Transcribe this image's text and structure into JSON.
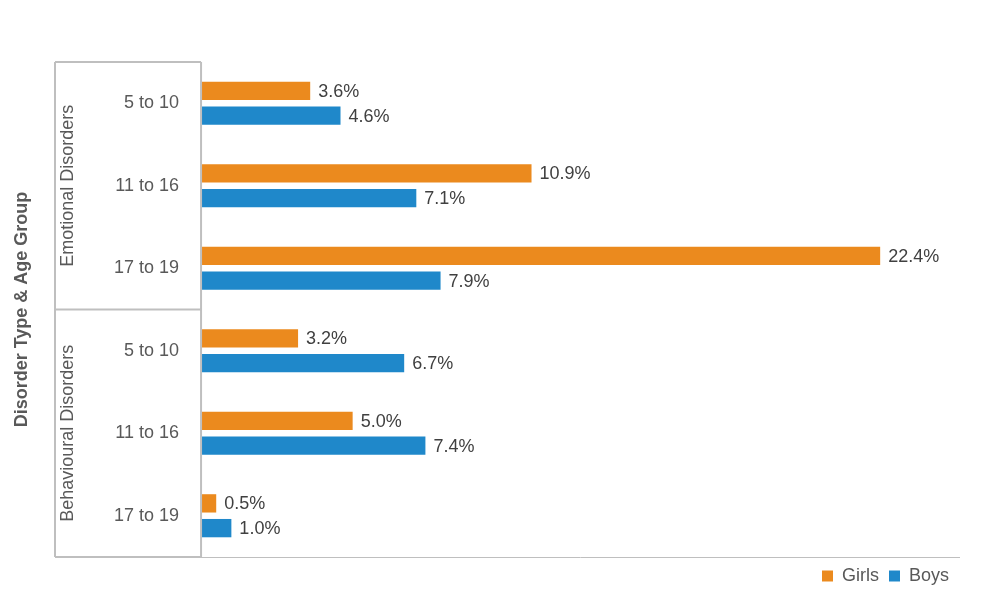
{
  "chart_data": {
    "type": "bar",
    "orientation": "horizontal",
    "y_label": "Disorder Type & Age Group",
    "categories": [
      "5 to 10",
      "11 to 16",
      "17 to 19",
      "5 to 10",
      "11 to 16",
      "17 to 19"
    ],
    "groups": [
      "Emotional Disorders",
      "Emotional Disorders",
      "Emotional Disorders",
      "Behavioural Disorders",
      "Behavioural Disorders",
      "Behavioural Disorders"
    ],
    "series": [
      {
        "name": "Girls",
        "color": "#eb8a1e",
        "values": [
          3.6,
          10.9,
          22.4,
          3.2,
          5.0,
          0.5
        ],
        "value_labels": [
          "3.6%",
          "10.9%",
          "22.4%",
          "3.2%",
          "5.0%",
          "0.5%"
        ]
      },
      {
        "name": "Boys",
        "color": "#1f88ca",
        "values": [
          4.6,
          7.1,
          7.9,
          6.7,
          7.4,
          1.0
        ],
        "value_labels": [
          "4.6%",
          "7.1%",
          "7.9%",
          "6.7%",
          "7.4%",
          "1.0%"
        ]
      }
    ],
    "xlim": [
      0,
      25
    ],
    "tick_labels": "y",
    "grid": false,
    "legend": "bottom-right",
    "data_labels": true
  }
}
